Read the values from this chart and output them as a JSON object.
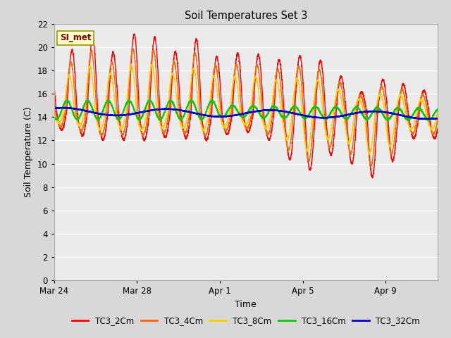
{
  "title": "Soil Temperatures Set 3",
  "xlabel": "Time",
  "ylabel": "Soil Temperature (C)",
  "ylim": [
    0,
    22
  ],
  "xlim_days": [
    0,
    18.5
  ],
  "fig_bg_color": "#d8d8d8",
  "plot_bg_color": "#ebebeb",
  "grid_color": "#ffffff",
  "annotation_text": "SI_met",
  "annotation_bg": "#ffffcc",
  "annotation_border": "#999900",
  "annotation_text_color": "#880000",
  "series": [
    {
      "label": "TC3_2Cm",
      "color": "#ff0000",
      "lw": 1.0
    },
    {
      "label": "TC3_4Cm",
      "color": "#ff6600",
      "lw": 1.0
    },
    {
      "label": "TC3_8Cm",
      "color": "#ffcc00",
      "lw": 1.0
    },
    {
      "label": "TC3_16Cm",
      "color": "#00cc00",
      "lw": 1.3
    },
    {
      "label": "TC3_32Cm",
      "color": "#0000cc",
      "lw": 1.5
    }
  ],
  "xticks_days": [
    0,
    4,
    8,
    12,
    16
  ],
  "xtick_labels": [
    "Mar 24",
    "Mar 28",
    "Apr 1",
    "Apr 5",
    "Apr 9"
  ],
  "yticks": [
    0,
    2,
    4,
    6,
    8,
    10,
    12,
    14,
    16,
    18,
    20,
    22
  ],
  "legend_ncol": 5
}
